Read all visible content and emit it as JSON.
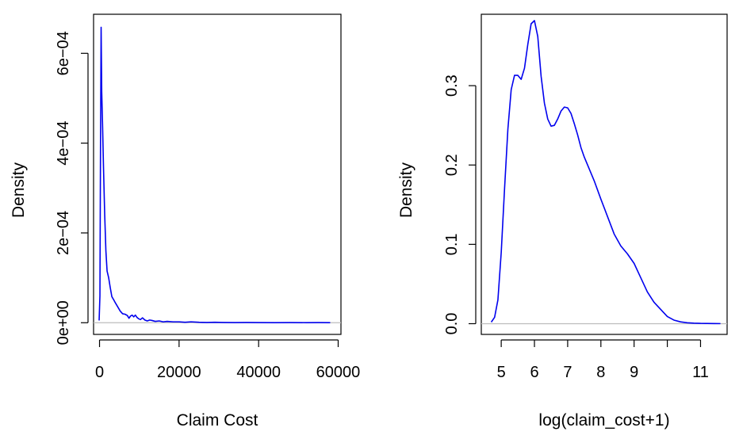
{
  "chart_data": [
    {
      "type": "line",
      "title": "",
      "xlabel": "Claim Cost",
      "ylabel": "Density",
      "xlim": [
        -1500,
        60700
      ],
      "ylim": [
        -2.6e-05,
        0.000687
      ],
      "x_ticks": [
        0,
        20000,
        40000,
        60000
      ],
      "x_tick_labels": [
        "0",
        "20000",
        "40000",
        "60000"
      ],
      "y_ticks": [
        0,
        0.0002,
        0.0004,
        0.0006
      ],
      "y_tick_labels": [
        "0e+00",
        "2e−04",
        "4e−04",
        "6e−04"
      ],
      "grid": false,
      "line_color": "#0000ee",
      "baseline_color": "#bdbdbd",
      "series": [
        {
          "x": [
            -100,
            100,
            250,
            400,
            550,
            750,
            1000,
            1300,
            1600,
            1900,
            2300,
            2700,
            3100,
            3500,
            4000,
            4600,
            5200,
            5800,
            6400,
            7000,
            7400,
            7800,
            8200,
            8600,
            9000,
            9400,
            9800,
            10300,
            10800,
            11400,
            12000,
            12600,
            13200,
            14000,
            15000,
            16000,
            17000,
            18500,
            20000,
            21500,
            23000,
            25000,
            27000,
            29000,
            31000,
            34000,
            37000,
            40000,
            44000,
            48000,
            52000,
            55000,
            58000
          ],
          "y": [
            5e-06,
            6e-05,
            0.0004,
            0.000658,
            0.000515,
            0.000445,
            0.000345,
            0.00024,
            0.00016,
            0.000115,
            0.0001,
            7.8e-05,
            5.8e-05,
            5.2e-05,
            4.4e-05,
            3.5e-05,
            2.6e-05,
            2e-05,
            1.9e-05,
            1.6e-05,
            1e-05,
            1.5e-05,
            1.7e-05,
            1.3e-05,
            1.7e-05,
            1.2e-05,
            9e-06,
            7e-06,
            1.1e-05,
            6e-06,
            4e-06,
            6e-06,
            5e-06,
            3e-06,
            4e-06,
            2e-06,
            3e-06,
            2e-06,
            2e-06,
            1e-06,
            2e-06,
            1e-06,
            5e-07,
            1e-06,
            5e-07,
            3e-07,
            5e-07,
            3e-07,
            2e-07,
            3e-07,
            2e-07,
            3e-07,
            2e-07
          ]
        }
      ]
    },
    {
      "type": "line",
      "title": "",
      "xlabel": "log(claim_cost+1)",
      "ylabel": "Density",
      "xlim": [
        4.4,
        11.8
      ],
      "ylim": [
        -0.0135,
        0.39
      ],
      "x_ticks": [
        5,
        6,
        7,
        8,
        9,
        10,
        11
      ],
      "x_tick_labels": [
        "5",
        "6",
        "7",
        "8",
        "9",
        "",
        "11"
      ],
      "y_ticks": [
        0,
        0.1,
        0.2,
        0.3
      ],
      "y_tick_labels": [
        "0.0",
        "0.1",
        "0.2",
        "0.3"
      ],
      "grid": false,
      "line_color": "#0000ee",
      "baseline_color": "#bdbdbd",
      "series": [
        {
          "x": [
            4.7,
            4.8,
            4.9,
            5.0,
            5.1,
            5.2,
            5.3,
            5.4,
            5.5,
            5.6,
            5.7,
            5.8,
            5.9,
            6.0,
            6.1,
            6.2,
            6.3,
            6.4,
            6.5,
            6.6,
            6.7,
            6.8,
            6.9,
            7.0,
            7.1,
            7.2,
            7.3,
            7.4,
            7.5,
            7.6,
            7.8,
            8.0,
            8.2,
            8.4,
            8.6,
            8.8,
            9.0,
            9.2,
            9.4,
            9.6,
            9.8,
            10.0,
            10.2,
            10.4,
            10.6,
            10.8,
            11.0,
            11.2,
            11.4,
            11.6
          ],
          "y": [
            0.002,
            0.008,
            0.03,
            0.09,
            0.17,
            0.245,
            0.295,
            0.313,
            0.313,
            0.308,
            0.322,
            0.352,
            0.378,
            0.382,
            0.362,
            0.312,
            0.278,
            0.258,
            0.249,
            0.25,
            0.258,
            0.268,
            0.273,
            0.272,
            0.265,
            0.252,
            0.238,
            0.222,
            0.21,
            0.2,
            0.18,
            0.157,
            0.135,
            0.113,
            0.098,
            0.088,
            0.076,
            0.058,
            0.04,
            0.027,
            0.018,
            0.009,
            0.0045,
            0.0023,
            0.0012,
            0.0007,
            0.0004,
            0.0003,
            0.0002,
            0.0001
          ]
        }
      ]
    }
  ]
}
